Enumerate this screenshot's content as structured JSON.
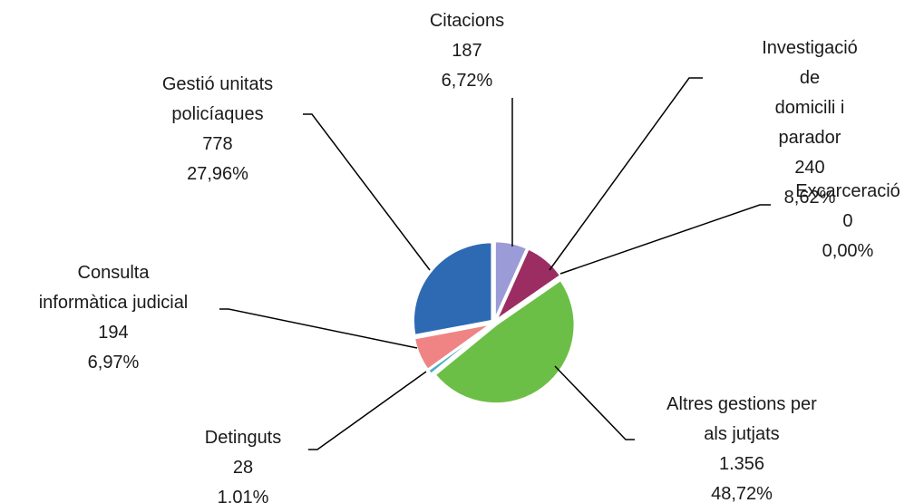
{
  "chart_data": {
    "type": "pie",
    "categories": [
      "Citacions",
      "Investigació de\ndomicili i parador",
      "Excarceració",
      "Altres gestions per\nals jutjats",
      "Detinguts",
      "Consulta\ninformàtica judicial",
      "Gestió unitats\npolicíaques"
    ],
    "values": [
      187,
      240,
      0,
      1356,
      28,
      194,
      778
    ],
    "value_labels": [
      "187",
      "240",
      "0",
      "1.356",
      "28",
      "194",
      "778"
    ],
    "percents": [
      6.72,
      8.62,
      0,
      48.72,
      1.01,
      6.97,
      27.96
    ],
    "percent_labels": [
      "6,72%",
      "8,62%",
      "0,00%",
      "48,72%",
      "1,01%",
      "6,97%",
      "27,96%"
    ],
    "colors": [
      "#9b9bd8",
      "#9b2d62",
      "#4f81bd",
      "#6cbf46",
      "#4bacc6",
      "#f08484",
      "#2d6ab3"
    ]
  }
}
